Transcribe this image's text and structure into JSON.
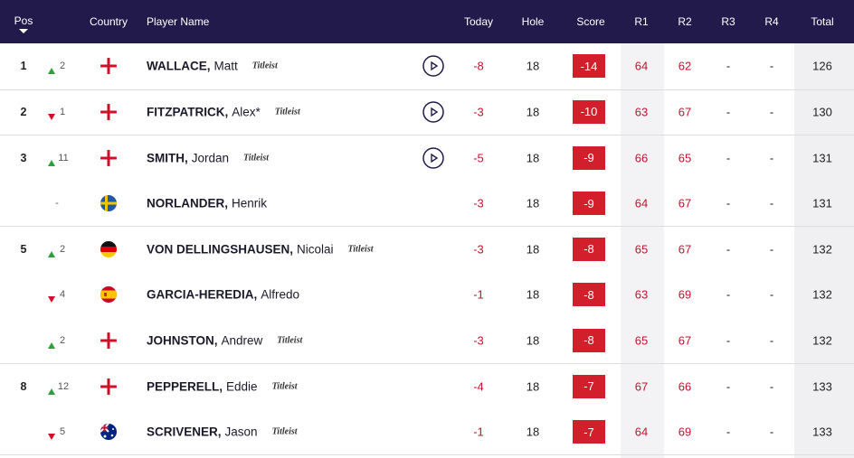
{
  "header": {
    "columns": [
      "Pos",
      "Country",
      "Player Name",
      "Today",
      "Hole",
      "Score",
      "R1",
      "R2",
      "R3",
      "R4",
      "Total"
    ]
  },
  "rows": [
    {
      "pos": "1",
      "movement": "2",
      "surname": "WALLACE,",
      "first_name": "Matt",
      "sponsor": "Titleist",
      "today": "-8",
      "hole": "18",
      "score": "-14",
      "r1": "64",
      "r2": "62",
      "r3": "-",
      "r4": "-",
      "total": "126"
    },
    {
      "pos": "2",
      "movement": "1",
      "surname": "FITZPATRICK,",
      "first_name": "Alex*",
      "sponsor": "Titleist",
      "today": "-3",
      "hole": "18",
      "score": "-10",
      "r1": "63",
      "r2": "67",
      "r3": "-",
      "r4": "-",
      "total": "130"
    },
    {
      "pos": "3",
      "movement": "11",
      "surname": "SMITH,",
      "first_name": "Jordan",
      "sponsor": "Titleist",
      "today": "-5",
      "hole": "18",
      "score": "-9",
      "r1": "66",
      "r2": "65",
      "r3": "-",
      "r4": "-",
      "total": "131"
    },
    {
      "movement": "-",
      "surname": "NORLANDER,",
      "first_name": "Henrik",
      "today": "-3",
      "hole": "18",
      "score": "-9",
      "r1": "64",
      "r2": "67",
      "r3": "-",
      "r4": "-",
      "total": "131"
    },
    {
      "pos": "5",
      "movement": "2",
      "surname": "VON DELLINGSHAUSEN,",
      "first_name": "Nicolai",
      "sponsor": "Titleist",
      "today": "-3",
      "hole": "18",
      "score": "-8",
      "r1": "65",
      "r2": "67",
      "r3": "-",
      "r4": "-",
      "total": "132"
    },
    {
      "movement": "4",
      "surname": "GARCIA-HEREDIA,",
      "first_name": "Alfredo",
      "today": "-1",
      "hole": "18",
      "score": "-8",
      "r1": "63",
      "r2": "69",
      "r3": "-",
      "r4": "-",
      "total": "132"
    },
    {
      "movement": "2",
      "surname": "JOHNSTON,",
      "first_name": "Andrew",
      "sponsor": "Titleist",
      "today": "-3",
      "hole": "18",
      "score": "-8",
      "r1": "65",
      "r2": "67",
      "r3": "-",
      "r4": "-",
      "total": "132"
    },
    {
      "pos": "8",
      "movement": "12",
      "surname": "PEPPERELL,",
      "first_name": "Eddie",
      "sponsor": "Titleist",
      "today": "-4",
      "hole": "18",
      "score": "-7",
      "r1": "67",
      "r2": "66",
      "r3": "-",
      "r4": "-",
      "total": "133"
    },
    {
      "movement": "5",
      "surname": "SCRIVENER,",
      "first_name": "Jason",
      "sponsor": "Titleist",
      "today": "-1",
      "hole": "18",
      "score": "-7",
      "r1": "64",
      "r2": "69",
      "r3": "-",
      "r4": "-",
      "total": "133"
    }
  ]
}
